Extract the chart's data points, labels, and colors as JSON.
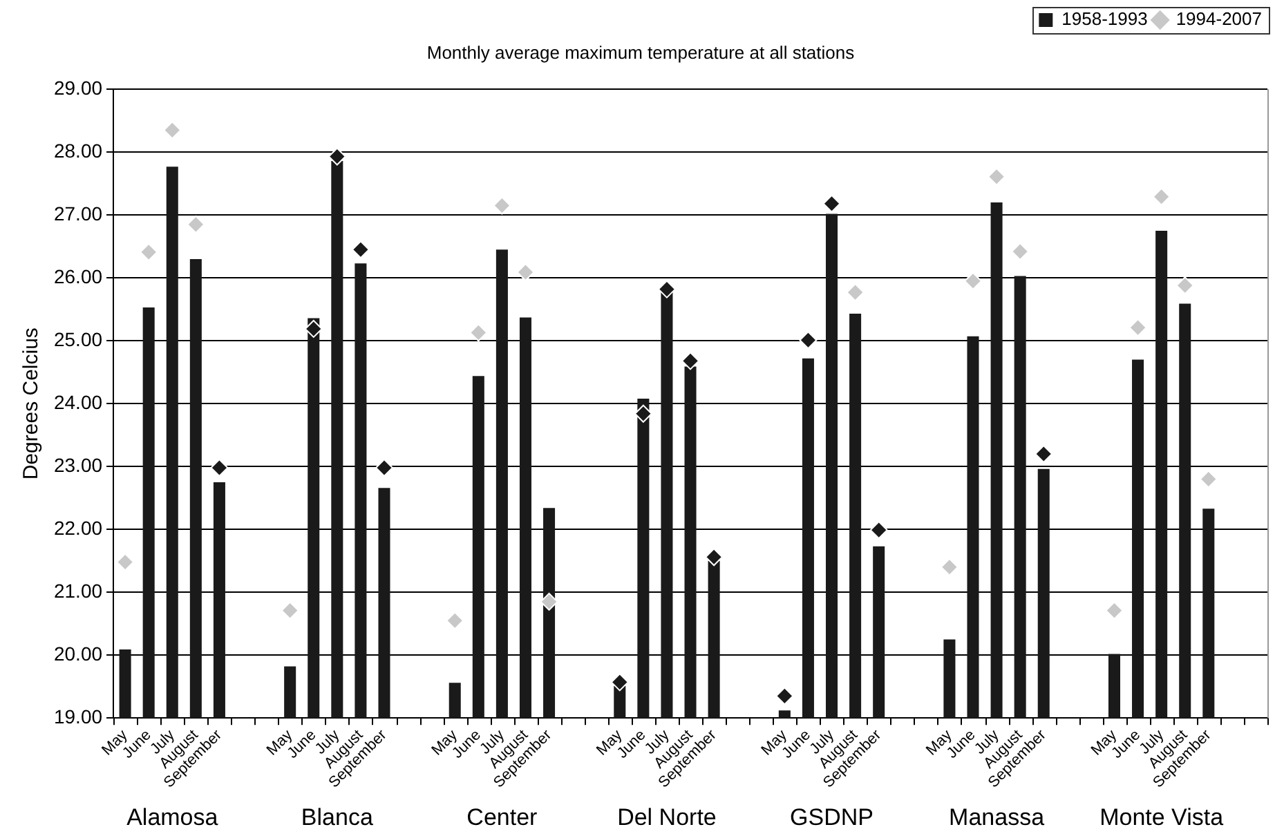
{
  "chart_data": {
    "type": "bar",
    "title": "Monthly average maximum temperature at all stations",
    "ylabel": "Degrees Celcius",
    "categories": [
      "May",
      "June",
      "July",
      "August",
      "September",
      null,
      null,
      "May",
      "June",
      "July",
      "August",
      "September",
      null,
      null,
      "May",
      "June",
      "July",
      "August",
      "September",
      null,
      null,
      "May",
      "June",
      "July",
      "August",
      "September",
      null,
      null,
      "May",
      "June",
      "July",
      "August",
      "September",
      null,
      null,
      "May",
      "June",
      "July",
      "August",
      "September",
      null,
      null,
      "May",
      "June",
      "July",
      "August",
      "September",
      null,
      null
    ],
    "series": [
      {
        "name": "1958-1993",
        "color": "#1a1a1a",
        "values": [
          20.09,
          25.53,
          27.77,
          26.3,
          22.75,
          null,
          null,
          19.82,
          25.36,
          27.86,
          26.23,
          22.66,
          null,
          null,
          19.56,
          24.44,
          26.45,
          25.37,
          22.34,
          null,
          null,
          19.51,
          24.08,
          25.78,
          24.59,
          21.5,
          null,
          null,
          19.12,
          24.72,
          27.02,
          25.43,
          21.73,
          null,
          null,
          20.25,
          25.07,
          27.2,
          26.03,
          22.96,
          null,
          null,
          20.02,
          24.7,
          26.75,
          25.59,
          22.33,
          null,
          null
        ]
      },
      {
        "name": "1994-2007",
        "type": "scatter",
        "marker": "diamond",
        "color": "#c8c8c8",
        "colors": [
          "#c8c8c8",
          "#c8c8c8",
          "#c8c8c8",
          "#c8c8c8",
          "#1a1a1a",
          null,
          null,
          "#c8c8c8",
          "#1a1a1a",
          "#1a1a1a",
          "#1a1a1a",
          "#1a1a1a",
          null,
          null,
          "#c8c8c8",
          "#c8c8c8",
          "#c8c8c8",
          "#c8c8c8",
          "#c8c8c8",
          null,
          null,
          "#1a1a1a",
          "#1a1a1a",
          "#1a1a1a",
          "#1a1a1a",
          "#1a1a1a",
          null,
          null,
          "#1a1a1a",
          "#1a1a1a",
          "#1a1a1a",
          "#c8c8c8",
          "#1a1a1a",
          null,
          null,
          "#c8c8c8",
          "#c8c8c8",
          "#c8c8c8",
          "#c8c8c8",
          "#1a1a1a",
          null,
          null,
          "#c8c8c8",
          "#c8c8c8",
          "#c8c8c8",
          "#c8c8c8",
          "#c8c8c8",
          null,
          null
        ],
        "values": [
          21.48,
          26.41,
          28.35,
          26.85,
          22.98,
          null,
          null,
          20.71,
          25.19,
          27.93,
          26.45,
          22.98,
          null,
          null,
          20.55,
          25.13,
          27.15,
          26.09,
          20.85,
          null,
          null,
          19.57,
          23.84,
          25.82,
          24.68,
          21.56,
          null,
          null,
          19.35,
          25.01,
          27.18,
          25.77,
          21.99,
          null,
          null,
          21.4,
          25.95,
          27.61,
          26.42,
          23.2,
          null,
          null,
          20.71,
          25.21,
          27.29,
          25.88,
          22.8,
          null,
          null
        ]
      }
    ],
    "ylim": [
      19,
      29
    ],
    "yticks": [
      {
        "value": 19,
        "label": "19.00"
      },
      {
        "value": 20,
        "label": "20.00"
      },
      {
        "value": 21,
        "label": "21.00"
      },
      {
        "value": 22,
        "label": "22.00"
      },
      {
        "value": 23,
        "label": "23.00"
      },
      {
        "value": 24,
        "label": "24.00"
      },
      {
        "value": 25,
        "label": "25.00"
      },
      {
        "value": 26,
        "label": "26.00"
      },
      {
        "value": 27,
        "label": "27.00"
      },
      {
        "value": 28,
        "label": "28.00"
      },
      {
        "value": 29,
        "label": "29.00"
      }
    ],
    "grid": "y",
    "legend": "top right",
    "annotations": [
      "Alamosa",
      "Blanca",
      "Center",
      "Del Norte",
      "GSDNP",
      "Manassa",
      "Monte Vista"
    ]
  }
}
